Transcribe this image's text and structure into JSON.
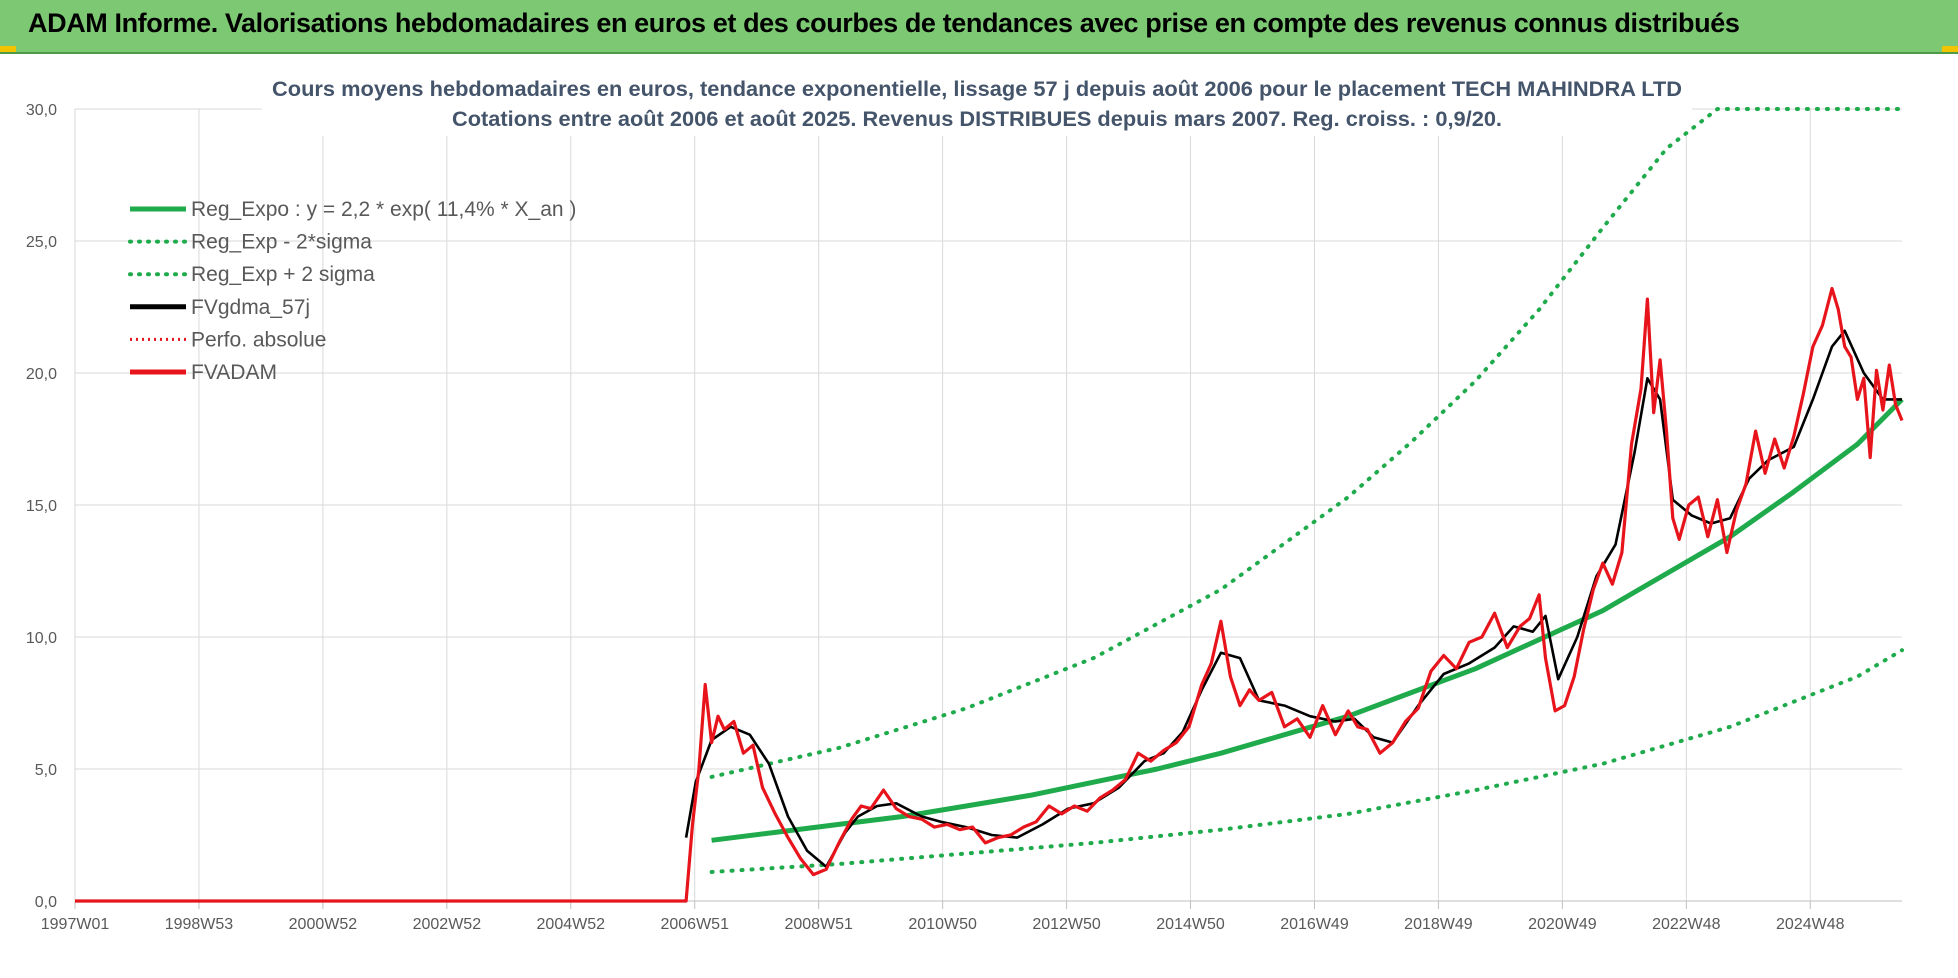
{
  "banner": {
    "title": "ADAM Informe. Valorisations hebdomadaires en euros et des courbes de tendances avec prise en compte des revenus connus distribués"
  },
  "colors": {
    "banner_bg": "#7dc873",
    "reg": "#1fab4c",
    "fv": "#000000",
    "adam": "#e8141b",
    "grid": "#d9d9d9"
  },
  "chart_data": {
    "type": "line",
    "title": "Cours moyens hebdomadaires en euros, tendance exponentielle, lissage 57 j depuis août 2006 pour le placement TECH MAHINDRA LTD",
    "subtitle": "Cotations entre août 2006 et août 2025. Revenus DISTRIBUES depuis mars 2007. Reg. croiss. : 0,9/20.",
    "xlabel": "",
    "ylabel": "",
    "ylim": [
      0,
      30
    ],
    "xlim": [
      1997.0,
      2025.7
    ],
    "yticks": [
      "0,0",
      "5,0",
      "10,0",
      "15,0",
      "20,0",
      "25,0",
      "30,0"
    ],
    "xticks": [
      "1997W01",
      "1998W53",
      "2000W52",
      "2002W52",
      "2004W52",
      "2006W51",
      "2008W51",
      "2010W50",
      "2012W50",
      "2014W50",
      "2016W49",
      "2018W49",
      "2020W49",
      "2022W48",
      "2024W48"
    ],
    "grid": true,
    "legend_position": "top-left",
    "series": [
      {
        "name": "Reg_Expo : y = 2,2 * exp( 11,4% *  X_an )",
        "style": "solid",
        "color": "#1fab4c",
        "x": [
          2007.0,
          2008.0,
          2009.0,
          2010.0,
          2011.0,
          2012.0,
          2013.0,
          2014.0,
          2015.0,
          2016.0,
          2017.0,
          2018.0,
          2019.0,
          2020.0,
          2021.0,
          2022.0,
          2023.0,
          2024.0,
          2025.0,
          2025.7
        ],
        "y": [
          2.3,
          2.6,
          2.9,
          3.2,
          3.6,
          4.0,
          4.5,
          5.0,
          5.6,
          6.3,
          7.0,
          7.9,
          8.8,
          9.9,
          11.0,
          12.4,
          13.8,
          15.5,
          17.3,
          19.0
        ]
      },
      {
        "name": "Reg_Exp - 2*sigma",
        "style": "dotted",
        "color": "#1fab4c",
        "x": [
          2007.0,
          2009.0,
          2011.0,
          2013.0,
          2015.0,
          2017.0,
          2019.0,
          2021.0,
          2023.0,
          2025.0,
          2025.7
        ],
        "y": [
          1.1,
          1.4,
          1.8,
          2.2,
          2.7,
          3.3,
          4.2,
          5.2,
          6.6,
          8.5,
          9.5
        ]
      },
      {
        "name": "Reg_Exp + 2 sigma",
        "style": "dotted",
        "color": "#1fab4c",
        "x": [
          2007.0,
          2009.0,
          2011.0,
          2013.0,
          2015.0,
          2017.0,
          2018.0,
          2019.0,
          2020.0,
          2021.0,
          2022.0,
          2022.8,
          2024.0,
          2025.7
        ],
        "y": [
          4.7,
          5.8,
          7.3,
          9.2,
          11.8,
          15.3,
          17.4,
          19.7,
          22.4,
          25.5,
          28.5,
          30.0,
          30.0,
          30.0
        ]
      },
      {
        "name": "FVgdma_57j",
        "style": "solid",
        "color": "#000000",
        "x": [
          2006.6,
          2006.75,
          2007.0,
          2007.3,
          2007.6,
          2007.9,
          2008.2,
          2008.5,
          2008.8,
          2009.1,
          2009.3,
          2009.6,
          2009.9,
          2010.3,
          2010.6,
          2011.0,
          2011.4,
          2011.8,
          2012.2,
          2012.6,
          2013.0,
          2013.4,
          2013.8,
          2014.1,
          2014.4,
          2014.7,
          2015.0,
          2015.3,
          2015.6,
          2016.0,
          2016.4,
          2016.8,
          2017.1,
          2017.4,
          2017.7,
          2018.1,
          2018.5,
          2018.9,
          2019.3,
          2019.6,
          2019.9,
          2020.1,
          2020.3,
          2020.6,
          2020.9,
          2021.2,
          2021.5,
          2021.7,
          2021.9,
          2022.1,
          2022.4,
          2022.7,
          2023.0,
          2023.3,
          2023.6,
          2024.0,
          2024.3,
          2024.6,
          2024.8,
          2025.1,
          2025.4,
          2025.7
        ],
        "y": [
          2.4,
          4.5,
          6.1,
          6.6,
          6.3,
          5.2,
          3.2,
          1.9,
          1.3,
          2.6,
          3.2,
          3.6,
          3.7,
          3.2,
          3.0,
          2.8,
          2.5,
          2.4,
          2.9,
          3.5,
          3.7,
          4.3,
          5.3,
          5.6,
          6.4,
          8.0,
          9.4,
          9.2,
          7.6,
          7.4,
          7.0,
          6.8,
          6.9,
          6.2,
          6.0,
          7.4,
          8.6,
          9.0,
          9.6,
          10.4,
          10.2,
          10.8,
          8.4,
          10.0,
          12.3,
          13.5,
          17.0,
          19.8,
          19.0,
          15.2,
          14.6,
          14.3,
          14.5,
          16.0,
          16.7,
          17.2,
          19.0,
          21.0,
          21.6,
          20.0,
          19.0,
          19.0
        ]
      },
      {
        "name": "Perfo. absolue",
        "style": "dotted",
        "color": "#e8141b",
        "x": [
          1997.0,
          2006.6
        ],
        "y": [
          0,
          0
        ]
      },
      {
        "name": "FVADAM",
        "style": "solid",
        "color": "#e8141b",
        "x": [
          1997.0,
          2006.6,
          2006.6,
          2006.7,
          2006.8,
          2006.9,
          2007.0,
          2007.1,
          2007.2,
          2007.35,
          2007.5,
          2007.65,
          2007.8,
          2008.0,
          2008.2,
          2008.4,
          2008.6,
          2008.8,
          2009.0,
          2009.2,
          2009.35,
          2009.5,
          2009.7,
          2009.9,
          2010.1,
          2010.3,
          2010.5,
          2010.7,
          2010.9,
          2011.1,
          2011.3,
          2011.5,
          2011.7,
          2011.9,
          2012.1,
          2012.3,
          2012.5,
          2012.7,
          2012.9,
          2013.1,
          2013.3,
          2013.5,
          2013.7,
          2013.9,
          2014.1,
          2014.3,
          2014.5,
          2014.7,
          2014.85,
          2015.0,
          2015.15,
          2015.3,
          2015.45,
          2015.6,
          2015.8,
          2016.0,
          2016.2,
          2016.4,
          2016.6,
          2016.8,
          2017.0,
          2017.15,
          2017.3,
          2017.5,
          2017.7,
          2017.9,
          2018.1,
          2018.3,
          2018.5,
          2018.7,
          2018.9,
          2019.1,
          2019.3,
          2019.5,
          2019.7,
          2019.85,
          2020.0,
          2020.1,
          2020.25,
          2020.4,
          2020.55,
          2020.7,
          2020.85,
          2021.0,
          2021.15,
          2021.3,
          2021.45,
          2021.6,
          2021.7,
          2021.8,
          2021.9,
          2022.0,
          2022.1,
          2022.2,
          2022.35,
          2022.5,
          2022.65,
          2022.8,
          2022.95,
          2023.1,
          2023.25,
          2023.4,
          2023.55,
          2023.7,
          2023.85,
          2024.0,
          2024.15,
          2024.3,
          2024.45,
          2024.6,
          2024.7,
          2024.8,
          2024.9,
          2025.0,
          2025.1,
          2025.2,
          2025.3,
          2025.4,
          2025.5,
          2025.6,
          2025.7
        ],
        "y": [
          0,
          0,
          0,
          2.9,
          5.0,
          8.2,
          6.0,
          7.0,
          6.5,
          6.8,
          5.6,
          5.9,
          4.3,
          3.3,
          2.4,
          1.6,
          1.0,
          1.2,
          2.2,
          3.1,
          3.6,
          3.5,
          4.2,
          3.5,
          3.2,
          3.1,
          2.8,
          2.9,
          2.7,
          2.8,
          2.2,
          2.4,
          2.5,
          2.8,
          3.0,
          3.6,
          3.3,
          3.6,
          3.4,
          3.9,
          4.2,
          4.6,
          5.6,
          5.3,
          5.7,
          6.0,
          6.6,
          8.2,
          9.0,
          10.6,
          8.5,
          7.4,
          8.0,
          7.6,
          7.9,
          6.6,
          6.9,
          6.2,
          7.4,
          6.3,
          7.2,
          6.6,
          6.5,
          5.6,
          6.0,
          6.8,
          7.3,
          8.7,
          9.3,
          8.8,
          9.8,
          10.0,
          10.9,
          9.6,
          10.4,
          10.7,
          11.6,
          9.2,
          7.2,
          7.4,
          8.5,
          10.3,
          11.8,
          12.8,
          12.0,
          13.2,
          17.3,
          19.4,
          22.8,
          18.5,
          20.5,
          17.8,
          14.5,
          13.7,
          15.0,
          15.3,
          13.8,
          15.2,
          13.2,
          14.8,
          15.8,
          17.8,
          16.2,
          17.5,
          16.4,
          17.6,
          19.2,
          21.0,
          21.8,
          23.2,
          22.4,
          21.0,
          20.6,
          19.0,
          19.8,
          16.8,
          20.1,
          18.6,
          20.3,
          18.8,
          18.2
        ]
      }
    ]
  }
}
